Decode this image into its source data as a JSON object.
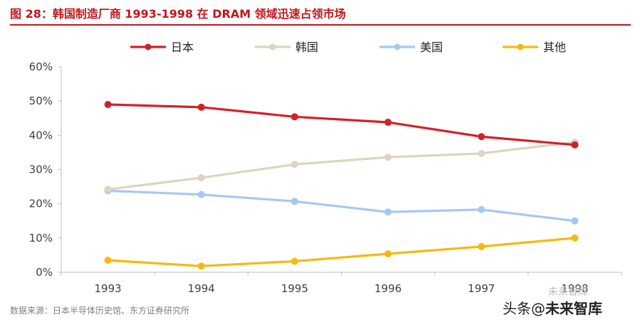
{
  "title": "图 28：韩国制造厂商 1993-1998 在 DRAM 领域迅速占领市场",
  "source": "数据来源：日本半导体历史馆、东方证券研究所",
  "watermark": {
    "small": "未来智库",
    "prefix": "头条",
    "at": "@",
    "name": "未来智库"
  },
  "chart_data": {
    "type": "line",
    "categories": [
      "1993",
      "1994",
      "1995",
      "1996",
      "1997",
      "1998"
    ],
    "ylim": [
      0,
      60
    ],
    "yticks": [
      0,
      10,
      20,
      30,
      40,
      50,
      60
    ],
    "ytick_labels": [
      "0%",
      "10%",
      "20%",
      "30%",
      "40%",
      "50%",
      "60%"
    ],
    "xlabel": "",
    "ylabel": "",
    "legend_position": "top",
    "series": [
      {
        "name": "日本",
        "color": "#d42027",
        "values": [
          49,
          48.2,
          45.4,
          43.8,
          39.6,
          37.2
        ]
      },
      {
        "name": "韩国",
        "color": "#ddd4c1",
        "values": [
          24.2,
          27.6,
          31.5,
          33.6,
          34.7,
          38
        ]
      },
      {
        "name": "美国",
        "color": "#a7c7f2",
        "values": [
          23.8,
          22.7,
          20.7,
          17.6,
          18.3,
          15
        ]
      },
      {
        "name": "其他",
        "color": "#f6b90f",
        "values": [
          3.5,
          1.8,
          3.2,
          5.4,
          7.5,
          10
        ]
      }
    ]
  }
}
